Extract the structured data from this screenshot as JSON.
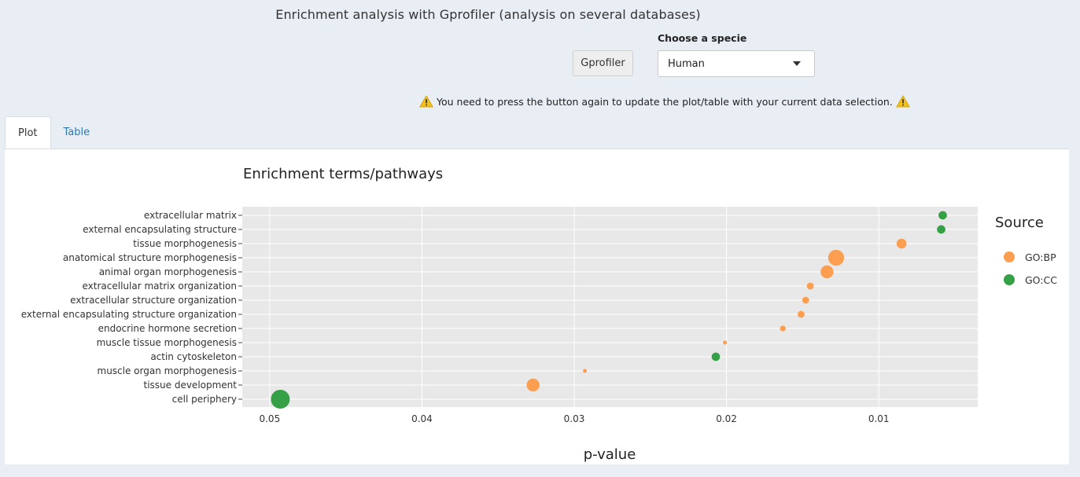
{
  "header": {
    "title": "Enrichment analysis with Gprofiler (analysis on several databases)",
    "button_label": "Gprofiler",
    "specie_label": "Choose a specie",
    "specie_value": "Human",
    "warning": "You need to press the button again to update the plot/table with your current data selection."
  },
  "tabs": [
    {
      "label": "Plot",
      "active": true
    },
    {
      "label": "Table",
      "active": false
    }
  ],
  "colors": {
    "go_bp": "#fb9e4f",
    "go_cc": "#35a046",
    "plot_bg": "#e8e8e8",
    "tab_link": "#2a7ab0"
  },
  "chart_data": {
    "type": "scatter",
    "title": "Enrichment terms/pathways",
    "xlabel": "p-value",
    "ylabel": "",
    "x_reversed": true,
    "xlim": [
      0.0518,
      0.0035
    ],
    "xticks": [
      0.05,
      0.04,
      0.03,
      0.02,
      0.01
    ],
    "xtick_labels": [
      "0.05",
      "0.04",
      "0.03",
      "0.02",
      "0.01"
    ],
    "grid": true,
    "legend": {
      "title": "Source",
      "placement": "right",
      "entries": [
        "GO:BP",
        "GO:CC"
      ]
    },
    "categories": [
      "extracellular matrix",
      "external encapsulating structure",
      "tissue morphogenesis",
      "anatomical structure morphogenesis",
      "animal organ morphogenesis",
      "extracellular matrix organization",
      "extracellular structure organization",
      "external encapsulating structure organization",
      "endocrine hormone secretion",
      "muscle tissue morphogenesis",
      "actin cytoskeleton",
      "muscle organ morphogenesis",
      "tissue development",
      "cell periphery"
    ],
    "series": [
      {
        "name": "GO:BP",
        "points": [
          {
            "term": "tissue morphogenesis",
            "p": 0.0085,
            "size": 3
          },
          {
            "term": "anatomical structure morphogenesis",
            "p": 0.0128,
            "size": 5
          },
          {
            "term": "animal organ morphogenesis",
            "p": 0.0134,
            "size": 4
          },
          {
            "term": "extracellular matrix organization",
            "p": 0.0145,
            "size": 2
          },
          {
            "term": "extracellular structure organization",
            "p": 0.0148,
            "size": 2
          },
          {
            "term": "external encapsulating structure organization",
            "p": 0.0151,
            "size": 2
          },
          {
            "term": "endocrine hormone secretion",
            "p": 0.0163,
            "size": 1.6
          },
          {
            "term": "muscle tissue morphogenesis",
            "p": 0.0201,
            "size": 1
          },
          {
            "term": "muscle organ morphogenesis",
            "p": 0.0293,
            "size": 1
          },
          {
            "term": "tissue development",
            "p": 0.0327,
            "size": 4
          }
        ]
      },
      {
        "name": "GO:CC",
        "points": [
          {
            "term": "extracellular matrix",
            "p": 0.0058,
            "size": 2.5
          },
          {
            "term": "external encapsulating structure",
            "p": 0.0059,
            "size": 2.5
          },
          {
            "term": "actin cytoskeleton",
            "p": 0.0207,
            "size": 2.5
          },
          {
            "term": "cell periphery",
            "p": 0.0493,
            "size": 6
          }
        ]
      }
    ]
  }
}
